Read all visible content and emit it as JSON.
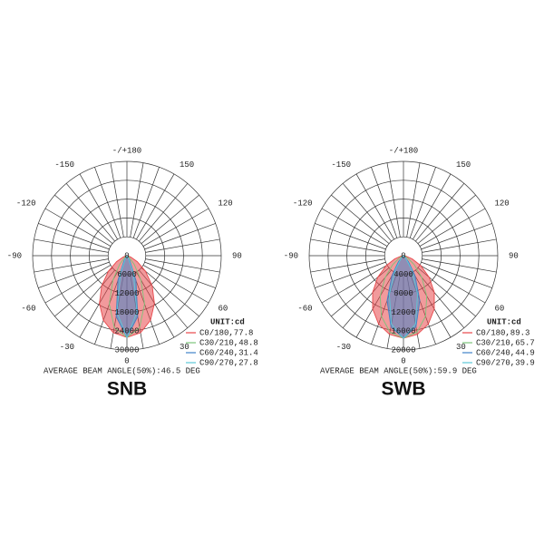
{
  "chart_data": [
    {
      "type": "polar",
      "title": "SNB",
      "subtitle": "AVERAGE BEAM ANGLE(50%):46.5 DEG",
      "legend_title": "UNIT:cd",
      "rlim": [
        0,
        30000
      ],
      "rticks": [
        0,
        6000,
        12000,
        18000,
        24000,
        30000
      ],
      "thetaticks": [
        {
          "value": 180,
          "label": "-/+180"
        },
        -150,
        150,
        -120,
        120,
        -90,
        90,
        -60,
        60,
        -30,
        30,
        0
      ],
      "theta": [
        -90,
        -80,
        -70,
        -60,
        -50,
        -40,
        -30,
        -20,
        -10,
        0,
        10,
        20,
        30,
        40,
        50,
        60,
        70,
        80,
        90
      ],
      "series": [
        {
          "name": "C0/180,77.8",
          "color": "#e8474a",
          "fill": true,
          "values": [
            0,
            200,
            1300,
            3800,
            7700,
            12500,
            17500,
            21900,
            24900,
            26000,
            24900,
            21900,
            17500,
            12500,
            7700,
            3800,
            1300,
            200,
            0
          ]
        },
        {
          "name": "C30/210,48.8",
          "color": "#7cc47a",
          "fill": false,
          "values": [
            0,
            0,
            0,
            200,
            1000,
            3600,
            8900,
            16400,
            23200,
            26000,
            23200,
            16400,
            8900,
            3600,
            1000,
            200,
            0,
            0,
            0
          ]
        },
        {
          "name": "C60/240,31.4",
          "color": "#3f83c9",
          "fill": true,
          "values": [
            0,
            0,
            0,
            0,
            0,
            100,
            1900,
            8400,
            19700,
            26000,
            19700,
            8400,
            1900,
            100,
            0,
            0,
            0,
            0,
            0
          ]
        },
        {
          "name": "C90/270,27.8",
          "color": "#5cc8d8",
          "fill": false,
          "values": [
            0,
            0,
            0,
            0,
            0,
            0,
            900,
            6100,
            18300,
            26000,
            18300,
            6100,
            900,
            0,
            0,
            0,
            0,
            0,
            0
          ]
        }
      ]
    },
    {
      "type": "polar",
      "title": "SWB",
      "subtitle": "AVERAGE BEAM ANGLE(50%):59.9 DEG",
      "legend_title": "UNIT:cd",
      "rlim": [
        0,
        20000
      ],
      "rticks": [
        0,
        4000,
        8000,
        12000,
        16000,
        20000
      ],
      "thetaticks": [
        {
          "value": 180,
          "label": "-/+180"
        },
        -150,
        150,
        -120,
        120,
        -90,
        90,
        -60,
        60,
        -30,
        30,
        0
      ],
      "theta": [
        -90,
        -80,
        -70,
        -60,
        -50,
        -40,
        -30,
        -20,
        -10,
        0,
        10,
        20,
        30,
        40,
        50,
        60,
        70,
        80,
        90
      ],
      "series": [
        {
          "name": "C0/180,89.3",
          "color": "#e8474a",
          "fill": true,
          "values": [
            0,
            500,
            1970,
            4270,
            7120,
            10170,
            13060,
            15430,
            16970,
            17500,
            16970,
            15430,
            13060,
            10170,
            7120,
            4270,
            1970,
            500,
            0
          ]
        },
        {
          "name": "C30/210,65.7",
          "color": "#7cc47a",
          "fill": false,
          "values": [
            0,
            0,
            240,
            1110,
            3020,
            6060,
            9880,
            13680,
            16470,
            17500,
            16470,
            13680,
            9880,
            6060,
            3020,
            1110,
            240,
            0,
            0
          ]
        },
        {
          "name": "C60/240,44.9",
          "color": "#3f83c9",
          "fill": true,
          "values": [
            0,
            0,
            0,
            0,
            360,
            1680,
            4940,
            10150,
            15310,
            17500,
            15310,
            10150,
            4940,
            1680,
            360,
            0,
            0,
            0,
            0
          ]
        },
        {
          "name": "C90/270,39.9",
          "color": "#5cc8d8",
          "fill": false,
          "values": [
            0,
            0,
            0,
            0,
            120,
            880,
            3500,
            8750,
            14760,
            17500,
            14760,
            8750,
            3500,
            880,
            120,
            0,
            0,
            0,
            0
          ]
        }
      ]
    }
  ]
}
